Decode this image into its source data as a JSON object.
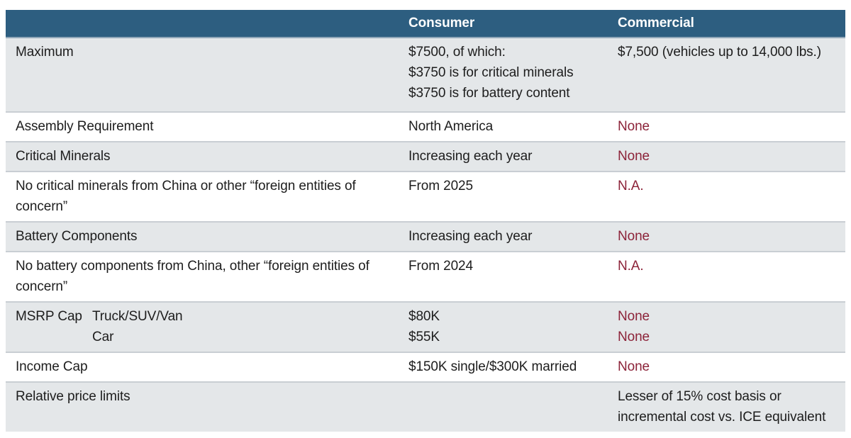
{
  "theme": {
    "header_bg": "#2d5e80",
    "header_text": "#ffffff",
    "row_alt_bg": "#e4e7e9",
    "row_bg": "#ffffff",
    "accent_red": "#8c2339",
    "body_text": "#1d1d1d",
    "separator": "#c9ced3",
    "header_separator": "#91a7b9"
  },
  "header": {
    "consumer": "Consumer",
    "commercial": "Commercial"
  },
  "rows": {
    "maximum": {
      "label": "Maximum",
      "consumer": [
        "$7500, of which:",
        "$3750 is for critical minerals",
        "$3750 is for battery content"
      ],
      "commercial": "$7,500 (vehicles up to 14,000 lbs.)"
    },
    "assembly": {
      "label": "Assembly Requirement",
      "consumer": "North America",
      "commercial": "None"
    },
    "critical_minerals": {
      "label": "Critical Minerals",
      "consumer": "Increasing each year",
      "commercial": "None"
    },
    "no_critical_minerals": {
      "label": "No critical minerals from China or other “foreign entities of concern”",
      "consumer": "From 2025",
      "commercial": "N.A."
    },
    "battery_components": {
      "label": "Battery Components",
      "consumer": "Increasing each year",
      "commercial": "None"
    },
    "no_battery_components": {
      "label": "No battery components from China, other “foreign entities of concern”",
      "consumer": "From 2024",
      "commercial": "N.A."
    },
    "msrp_cap": {
      "label": "MSRP Cap",
      "sublabels": [
        "Truck/SUV/Van",
        "Car"
      ],
      "consumer": [
        "$80K",
        "$55K"
      ],
      "commercial": [
        "None",
        "None"
      ]
    },
    "income_cap": {
      "label": "Income Cap",
      "consumer": "$150K single/$300K married",
      "commercial": "None"
    },
    "relative_price_limits": {
      "label": "Relative price limits",
      "consumer": "",
      "commercial": [
        "Lesser of 15% cost basis or",
        "incremental cost vs. ICE equivalent"
      ]
    }
  }
}
